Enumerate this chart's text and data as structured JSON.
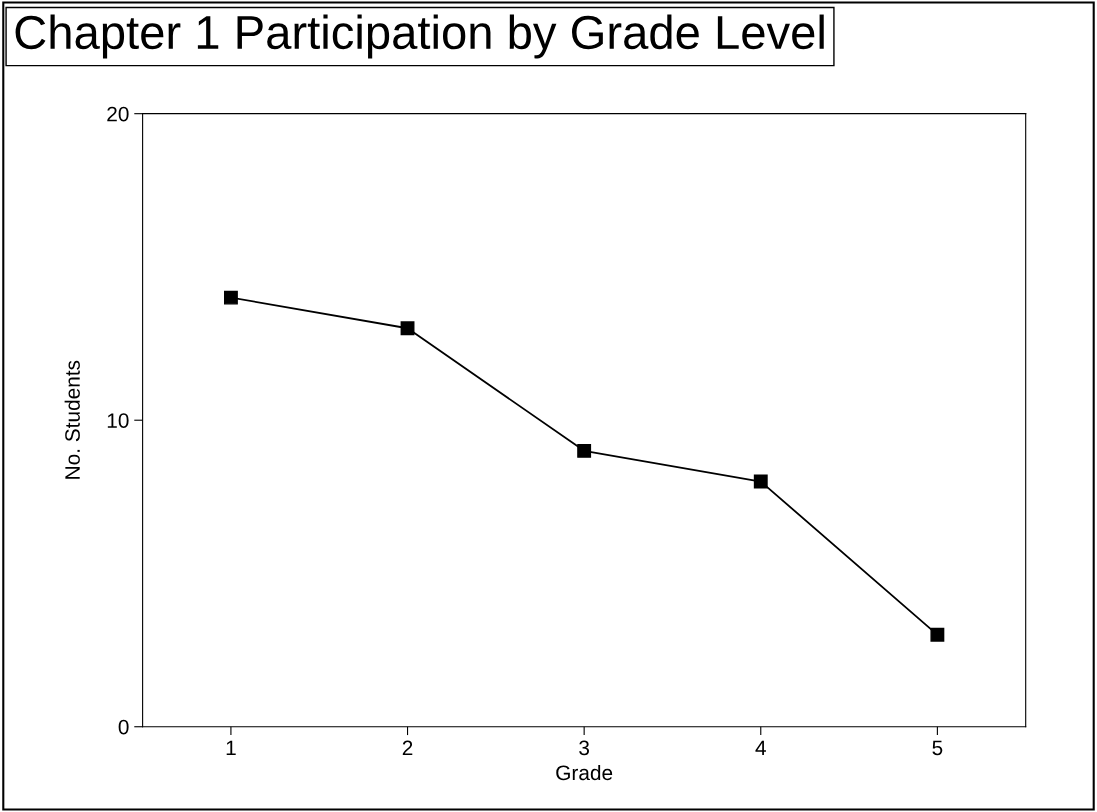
{
  "chart_data": {
    "type": "line",
    "title": "Chapter 1 Participation by Grade Level",
    "xlabel": "Grade",
    "ylabel": "No. Students",
    "x": [
      1,
      2,
      3,
      4,
      5
    ],
    "series": [
      {
        "color": "#000000",
        "values": [
          14,
          13,
          9,
          8,
          3
        ]
      }
    ],
    "xlim": [
      0.5,
      5.5
    ],
    "xticks": [
      1,
      2,
      3,
      4,
      5
    ],
    "ylim": [
      0,
      20
    ],
    "yticks": [
      0,
      10,
      20
    ],
    "marker": "square",
    "line_style": "solid",
    "grid": false,
    "legend": false
  }
}
